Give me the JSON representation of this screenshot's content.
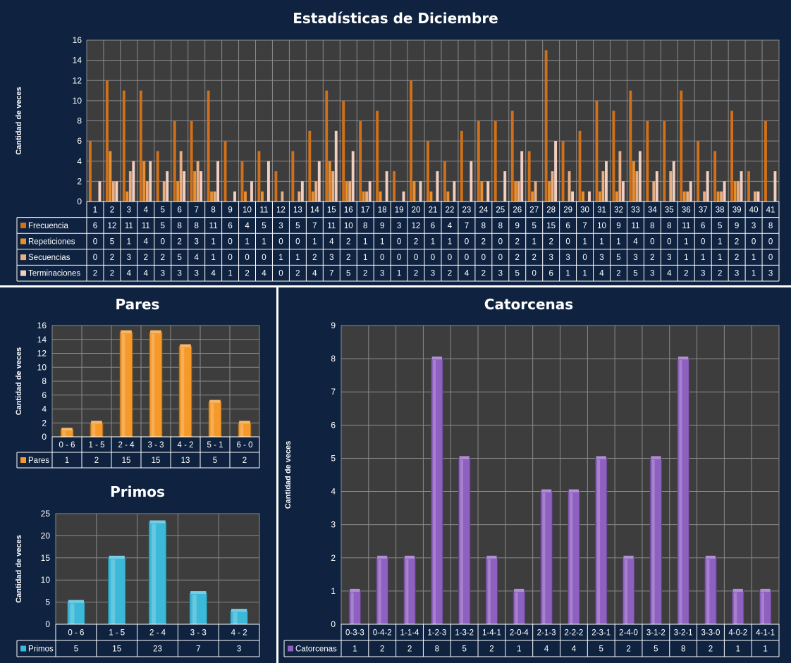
{
  "chart_data": [
    {
      "type": "bar",
      "title": "Estadísticas de Diciembre",
      "ylabel": "Cantidad de veces",
      "ylim": [
        0,
        16
      ],
      "yticks": [
        0,
        2,
        4,
        6,
        8,
        10,
        12,
        14,
        16
      ],
      "categories": [
        "1",
        "2",
        "3",
        "4",
        "5",
        "6",
        "7",
        "8",
        "9",
        "10",
        "11",
        "12",
        "13",
        "14",
        "15",
        "16",
        "17",
        "18",
        "19",
        "20",
        "21",
        "22",
        "23",
        "24",
        "25",
        "26",
        "27",
        "28",
        "29",
        "30",
        "31",
        "32",
        "33",
        "34",
        "35",
        "36",
        "37",
        "38",
        "39",
        "40",
        "41"
      ],
      "series": [
        {
          "name": "Frecuencia",
          "color": "#d0701a",
          "values": [
            6,
            12,
            11,
            11,
            5,
            8,
            8,
            11,
            6,
            4,
            5,
            3,
            5,
            7,
            11,
            10,
            8,
            9,
            3,
            12,
            6,
            4,
            7,
            8,
            8,
            9,
            5,
            15,
            6,
            7,
            10,
            9,
            11,
            8,
            8,
            11,
            6,
            5,
            9,
            3,
            8
          ]
        },
        {
          "name": "Repeticiones",
          "color": "#e89030",
          "values": [
            0,
            5,
            1,
            4,
            0,
            2,
            3,
            1,
            0,
            1,
            1,
            0,
            0,
            1,
            4,
            2,
            1,
            1,
            0,
            2,
            1,
            1,
            0,
            2,
            0,
            2,
            1,
            2,
            0,
            1,
            1,
            1,
            4,
            0,
            0,
            1,
            0,
            1,
            2,
            0,
            0
          ]
        },
        {
          "name": "Secuencias",
          "color": "#e8ad80",
          "values": [
            0,
            2,
            3,
            2,
            2,
            5,
            4,
            1,
            0,
            0,
            0,
            1,
            1,
            2,
            3,
            2,
            1,
            0,
            0,
            0,
            0,
            0,
            0,
            0,
            0,
            2,
            2,
            3,
            3,
            0,
            3,
            5,
            3,
            2,
            3,
            1,
            1,
            1,
            2,
            1,
            0
          ]
        },
        {
          "name": "Terminaciones",
          "color": "#f3cfc2",
          "values": [
            2,
            2,
            4,
            4,
            3,
            3,
            3,
            4,
            1,
            2,
            4,
            0,
            2,
            4,
            7,
            5,
            2,
            3,
            1,
            2,
            3,
            2,
            4,
            2,
            3,
            5,
            0,
            6,
            1,
            1,
            4,
            2,
            5,
            3,
            4,
            2,
            3,
            2,
            3,
            1,
            3
          ]
        }
      ]
    },
    {
      "type": "bar",
      "title": "Pares",
      "ylabel": "Cantidad de veces",
      "ylim": [
        0,
        16
      ],
      "yticks": [
        0,
        2,
        4,
        6,
        8,
        10,
        12,
        14,
        16
      ],
      "categories": [
        "0 - 6",
        "1 - 5",
        "2 - 4",
        "3 - 3",
        "4 - 2",
        "5 - 1",
        "6 - 0"
      ],
      "series": [
        {
          "name": "Pares",
          "color": "#f59a2a",
          "values": [
            1,
            2,
            15,
            15,
            13,
            5,
            2
          ]
        }
      ]
    },
    {
      "type": "bar",
      "title": "Primos",
      "ylabel": "Cantidad de veces",
      "ylim": [
        0,
        25
      ],
      "yticks": [
        0,
        5,
        10,
        15,
        20,
        25
      ],
      "categories": [
        "0 - 6",
        "1 - 5",
        "2 - 4",
        "3 - 3",
        "4 - 2"
      ],
      "series": [
        {
          "name": "Primos",
          "color": "#3cb8d8",
          "values": [
            5,
            15,
            23,
            7,
            3
          ]
        }
      ]
    },
    {
      "type": "bar",
      "title": "Catorcenas",
      "ylabel": "Cantidad de veces",
      "ylim": [
        0,
        9
      ],
      "yticks": [
        0,
        1,
        2,
        3,
        4,
        5,
        6,
        7,
        8,
        9
      ],
      "categories": [
        "0-3-3",
        "0-4-2",
        "1-1-4",
        "1-2-3",
        "1-3-2",
        "1-4-1",
        "2-0-4",
        "2-1-3",
        "2-2-2",
        "2-3-1",
        "2-4-0",
        "3-1-2",
        "3-2-1",
        "3-3-0",
        "4-0-2",
        "4-1-1"
      ],
      "series": [
        {
          "name": "Catorcenas",
          "color": "#8e60c0",
          "values": [
            1,
            2,
            2,
            8,
            5,
            2,
            1,
            4,
            4,
            5,
            2,
            5,
            8,
            2,
            1,
            1
          ]
        }
      ]
    }
  ]
}
